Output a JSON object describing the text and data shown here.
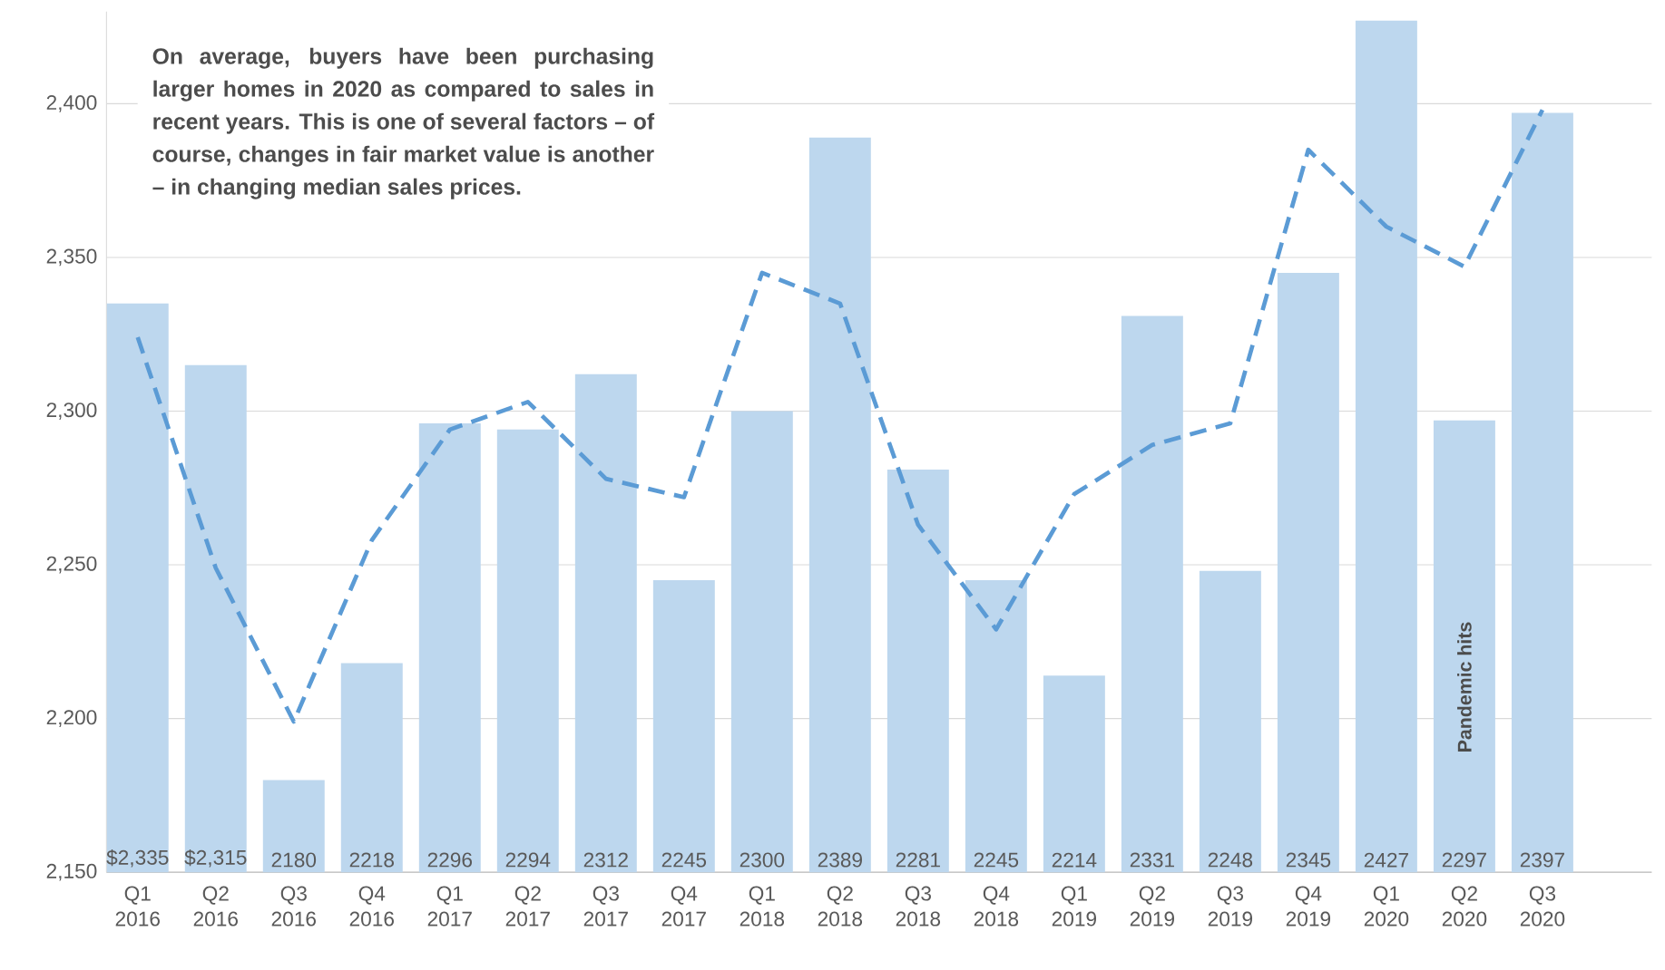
{
  "chart_data": {
    "type": "bar",
    "categories": [
      "Q1 2016",
      "Q2 2016",
      "Q3 2016",
      "Q4 2016",
      "Q1 2017",
      "Q2 2017",
      "Q3 2017",
      "Q4 2017",
      "Q1 2018",
      "Q2 2018",
      "Q3 2018",
      "Q4 2018",
      "Q1 2019",
      "Q2 2019",
      "Q3 2019",
      "Q4 2019",
      "Q1 2020",
      "Q2 2020",
      "Q3 2020"
    ],
    "series": [
      {
        "color": "#bdd7ee",
        "values": [
          2335,
          2315,
          2180,
          2218,
          2296,
          2294,
          2312,
          2245,
          2300,
          2389,
          2281,
          2245,
          2214,
          2331,
          2248,
          2345,
          2427,
          2297,
          2397
        ],
        "value_labels": [
          "$2,335",
          "$2,315",
          "2180",
          "2218",
          "2296",
          "2294",
          "2312",
          "2245",
          "2300",
          "2389",
          "2281",
          "2245",
          "2214",
          "2331",
          "2248",
          "2345",
          "2427",
          "2297",
          "2397"
        ]
      },
      {
        "type": "line",
        "color": "#5b9bd5",
        "line_style": "dashed",
        "marker": "none",
        "values": [
          2324,
          2249,
          2199,
          2258,
          2294,
          2303,
          2278,
          2272,
          2345,
          2335,
          2263,
          2229,
          2273,
          2289,
          2296,
          2385,
          2360,
          2347,
          2398
        ]
      }
    ],
    "ylim": [
      2150,
      2430
    ],
    "yticks": [
      {
        "value": 2150,
        "label": "2,150"
      },
      {
        "value": 2200,
        "label": "2,200"
      },
      {
        "value": 2250,
        "label": "2,250"
      },
      {
        "value": 2300,
        "label": "2,300"
      },
      {
        "value": 2350,
        "label": "2,350"
      },
      {
        "value": 2400,
        "label": "2,400"
      }
    ],
    "grid": "y",
    "annotations": [
      "On average, buyers have been purchasing larger homes in 2020 as compared to sales in recent years. This is one of several factors – of course, changes in fair market value is another – in changing median sales prices.",
      "Pandemic hits"
    ]
  }
}
